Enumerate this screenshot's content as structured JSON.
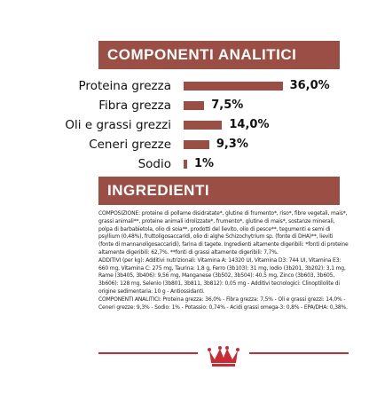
{
  "sections": {
    "analysis_title": "COMPONENTI ANALITICI",
    "ingredients_title": "INGREDIENTI"
  },
  "analysis": [
    {
      "label": "Proteina grezza",
      "value": "36,0%",
      "percent": 36.0
    },
    {
      "label": "Fibra grezza",
      "value": "7,5%",
      "percent": 7.5
    },
    {
      "label": "Oli e grassi grezzi",
      "value": "14,0%",
      "percent": 14.0
    },
    {
      "label": "Ceneri grezze",
      "value": "9,3%",
      "percent": 9.3
    },
    {
      "label": "Sodio",
      "value": "1%",
      "percent": 1.0
    }
  ],
  "colors": {
    "brand": "#9b4f44",
    "logo_red": "#cc2a32"
  },
  "ingredients_text": [
    "COMPOSIZIONE: proteine di pollame disidratate*, glutine di frumento*, riso*, fibre vegetali, mais*, grassi animali**, proteine animali idrolizzate*, frumento*, glutine di mais*, sostanze minerali, polpa di barbabietola, olio di soia**, prodotti del lievito, olio di pesce**, tegumenti e semi di psyllium (0,48%), fruttoligosaccaridi, olio di alghe Schizochytrium sp. (fonte di DHA)**, lieviti (fonte di mannanoligosaccaridi), farina di tagete. Ingredienti altamente digeribili: *fonti di proteine altamente digeribili: 62,7%. **fonti di grassi altamente digeribili: 7,7%.",
    "ADDITIVI (per kg): Additivi nutrizionali: Vitamina A: 14320 UI, Vitamina D3: 744 UI, Vitamina E3: 660 mg, Vitamina C: 275 mg, Taurina: 1,8 g, Ferro (3b103): 31 mg, Iodio (3b201, 3b202): 3,1 mg, Rame (3b405, 3b406): 9,56 mg, Manganese (3b502, 3b504): 40,5 mg, Zinco (3b603, 3b605, 3b606): 128 mg, Selenio (3b801, 3b811, 3b812): 0,05 mg - Additivi tecnologici: Clinoptilolite di origine sedimentaria: 10 g - Antiossidanti.",
    "COMPONENTI ANALITICI: Proteina grezza: 36,0% - Fibra grezza: 7,5% - Oli e grassi grezzi: 14,0% - Ceneri grezze: 9,3% - Sodio: 1% - Potassio: 0,74% - Acidi grassi omega-3: 0,8% - EPA/DHA: 0,38%."
  ]
}
